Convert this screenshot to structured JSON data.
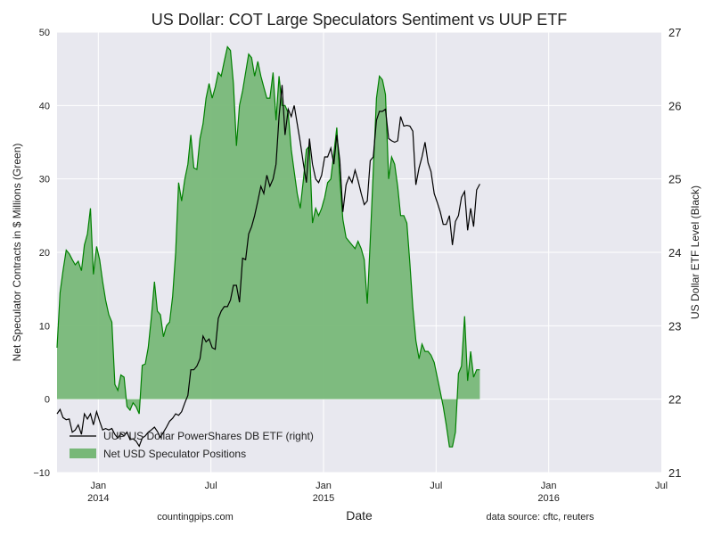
{
  "chart_data": {
    "type": "area",
    "title": "US Dollar: COT Large Speculators Sentiment vs UUP ETF",
    "xlabel": "Date",
    "ylabel_left": "Net Speculator Contracts in $ Millions (Green)",
    "ylabel_right": "US Dollar ETF Level (Black)",
    "ylim_left": [
      -10,
      50
    ],
    "ylim_right": [
      21,
      27
    ],
    "yticks_left": [
      "−10",
      "0",
      "10",
      "20",
      "30",
      "40",
      "50"
    ],
    "yticks_right": [
      "21",
      "22",
      "23",
      "24",
      "25",
      "26",
      "27"
    ],
    "x_ticks": [
      {
        "label": "Jan",
        "sub": "2014",
        "t": 3.0
      },
      {
        "label": "Jul",
        "sub": "",
        "t": 9.0
      },
      {
        "label": "Jan",
        "sub": "2015",
        "t": 15.0
      },
      {
        "label": "Jul",
        "sub": "",
        "t": 21.0
      },
      {
        "label": "Jan",
        "sub": "2016",
        "t": 27.0
      },
      {
        "label": "Jul",
        "sub": "",
        "t": 33.0
      }
    ],
    "x_range_months": [
      0.8,
      33.0
    ],
    "grid": true,
    "legend_position": "lower-left",
    "series": [
      {
        "name": "Net USD Speculator Positions",
        "axis": "left",
        "color": "#008000",
        "fill": "#78b878",
        "points": [
          [
            0.8,
            7.0
          ],
          [
            0.96,
            14.5
          ],
          [
            1.12,
            17.5
          ],
          [
            1.29,
            20.3
          ],
          [
            1.45,
            19.8
          ],
          [
            1.61,
            19.0
          ],
          [
            1.77,
            18.3
          ],
          [
            1.93,
            18.8
          ],
          [
            2.1,
            17.5
          ],
          [
            2.26,
            21.0
          ],
          [
            2.42,
            22.5
          ],
          [
            2.58,
            26.0
          ],
          [
            2.74,
            17.0
          ],
          [
            2.91,
            20.8
          ],
          [
            3.07,
            19.0
          ],
          [
            3.23,
            16.0
          ],
          [
            3.39,
            13.5
          ],
          [
            3.56,
            11.5
          ],
          [
            3.72,
            10.5
          ],
          [
            3.88,
            2.0
          ],
          [
            4.04,
            1.2
          ],
          [
            4.2,
            3.3
          ],
          [
            4.37,
            3.0
          ],
          [
            4.53,
            -1.0
          ],
          [
            4.69,
            -1.5
          ],
          [
            4.85,
            -0.5
          ],
          [
            5.01,
            -1.0
          ],
          [
            5.18,
            -2.0
          ],
          [
            5.34,
            4.6
          ],
          [
            5.5,
            4.8
          ],
          [
            5.66,
            7.0
          ],
          [
            5.82,
            11.0
          ],
          [
            5.99,
            16.0
          ],
          [
            6.15,
            12.0
          ],
          [
            6.31,
            11.5
          ],
          [
            6.47,
            8.5
          ],
          [
            6.63,
            10.0
          ],
          [
            6.8,
            10.5
          ],
          [
            6.96,
            14.0
          ],
          [
            7.12,
            20.0
          ],
          [
            7.28,
            29.5
          ],
          [
            7.44,
            27.0
          ],
          [
            7.61,
            30.0
          ],
          [
            7.77,
            32.0
          ],
          [
            7.93,
            36.0
          ],
          [
            8.09,
            31.5
          ],
          [
            8.25,
            31.3
          ],
          [
            8.42,
            35.5
          ],
          [
            8.58,
            37.5
          ],
          [
            8.74,
            41.0
          ],
          [
            8.9,
            43.0
          ],
          [
            9.07,
            41.0
          ],
          [
            9.23,
            42.5
          ],
          [
            9.39,
            44.5
          ],
          [
            9.55,
            44.0
          ],
          [
            9.71,
            46.0
          ],
          [
            9.88,
            48.0
          ],
          [
            10.04,
            47.5
          ],
          [
            10.2,
            43.0
          ],
          [
            10.36,
            34.5
          ],
          [
            10.52,
            40.0
          ],
          [
            10.69,
            42.0
          ],
          [
            10.85,
            44.5
          ],
          [
            11.01,
            47.0
          ],
          [
            11.17,
            46.5
          ],
          [
            11.33,
            44.0
          ],
          [
            11.5,
            46.0
          ],
          [
            11.66,
            44.0
          ],
          [
            11.82,
            42.5
          ],
          [
            11.98,
            41.0
          ],
          [
            12.14,
            41.0
          ],
          [
            12.31,
            44.5
          ],
          [
            12.47,
            38.0
          ],
          [
            12.63,
            44.0
          ],
          [
            12.79,
            40.0
          ],
          [
            12.95,
            40.0
          ],
          [
            13.12,
            39.0
          ],
          [
            13.28,
            34.0
          ],
          [
            13.44,
            31.0
          ],
          [
            13.6,
            28.0
          ],
          [
            13.76,
            26.0
          ],
          [
            13.93,
            30.0
          ],
          [
            14.09,
            34.0
          ],
          [
            14.25,
            34.5
          ],
          [
            14.41,
            24.0
          ],
          [
            14.58,
            26.0
          ],
          [
            14.74,
            25.0
          ],
          [
            14.9,
            26.0
          ],
          [
            15.06,
            27.5
          ],
          [
            15.22,
            29.5
          ],
          [
            15.39,
            30.0
          ],
          [
            15.55,
            33.5
          ],
          [
            15.71,
            37.0
          ],
          [
            15.87,
            30.0
          ],
          [
            16.03,
            24.5
          ],
          [
            16.2,
            22.0
          ],
          [
            16.36,
            21.5
          ],
          [
            16.52,
            21.0
          ],
          [
            16.68,
            20.5
          ],
          [
            16.84,
            21.5
          ],
          [
            17.01,
            20.5
          ],
          [
            17.17,
            19.0
          ],
          [
            17.33,
            13.0
          ],
          [
            17.49,
            21.5
          ],
          [
            17.65,
            31.0
          ],
          [
            17.82,
            41.0
          ],
          [
            17.98,
            44.0
          ],
          [
            18.14,
            43.5
          ],
          [
            18.3,
            41.5
          ],
          [
            18.47,
            30.0
          ],
          [
            18.63,
            33.0
          ],
          [
            18.79,
            32.0
          ],
          [
            18.95,
            29.0
          ],
          [
            19.11,
            25.0
          ],
          [
            19.28,
            25.0
          ],
          [
            19.44,
            24.0
          ],
          [
            19.6,
            18.5
          ],
          [
            19.76,
            12.5
          ],
          [
            19.92,
            8.0
          ],
          [
            20.09,
            5.5
          ],
          [
            20.25,
            7.5
          ],
          [
            20.41,
            6.5
          ],
          [
            20.57,
            6.5
          ],
          [
            20.73,
            6.0
          ],
          [
            20.9,
            5.0
          ],
          [
            21.06,
            3.0
          ],
          [
            21.22,
            1.0
          ],
          [
            21.38,
            -1.0
          ],
          [
            21.54,
            -3.5
          ],
          [
            21.71,
            -6.5
          ],
          [
            21.87,
            -6.5
          ],
          [
            22.03,
            -4.5
          ],
          [
            22.19,
            3.5
          ],
          [
            22.35,
            4.5
          ],
          [
            22.52,
            11.3
          ],
          [
            22.68,
            2.5
          ],
          [
            22.84,
            6.5
          ],
          [
            23.0,
            3.0
          ],
          [
            23.16,
            4.0
          ],
          [
            23.33,
            4.0
          ]
        ]
      },
      {
        "name": "UUP US Dollar PowerShares DB ETF (right)",
        "axis": "right",
        "color": "#000000",
        "points": [
          [
            0.8,
            21.8
          ],
          [
            0.96,
            21.86
          ],
          [
            1.12,
            21.75
          ],
          [
            1.29,
            21.72
          ],
          [
            1.45,
            21.73
          ],
          [
            1.61,
            21.55
          ],
          [
            1.77,
            21.58
          ],
          [
            1.93,
            21.65
          ],
          [
            2.1,
            21.52
          ],
          [
            2.26,
            21.8
          ],
          [
            2.42,
            21.73
          ],
          [
            2.58,
            21.8
          ],
          [
            2.74,
            21.65
          ],
          [
            2.91,
            21.83
          ],
          [
            3.07,
            21.7
          ],
          [
            3.23,
            21.58
          ],
          [
            3.39,
            21.6
          ],
          [
            3.56,
            21.58
          ],
          [
            3.72,
            21.6
          ],
          [
            3.88,
            21.52
          ],
          [
            4.04,
            21.47
          ],
          [
            4.2,
            21.53
          ],
          [
            4.37,
            21.5
          ],
          [
            4.53,
            21.55
          ],
          [
            4.69,
            21.45
          ],
          [
            4.85,
            21.46
          ],
          [
            5.01,
            21.43
          ],
          [
            5.18,
            21.36
          ],
          [
            5.34,
            21.47
          ],
          [
            5.5,
            21.5
          ],
          [
            5.66,
            21.55
          ],
          [
            5.82,
            21.58
          ],
          [
            5.99,
            21.62
          ],
          [
            6.15,
            21.56
          ],
          [
            6.31,
            21.48
          ],
          [
            6.47,
            21.55
          ],
          [
            6.63,
            21.62
          ],
          [
            6.8,
            21.7
          ],
          [
            6.96,
            21.74
          ],
          [
            7.12,
            21.8
          ],
          [
            7.28,
            21.78
          ],
          [
            7.44,
            21.83
          ],
          [
            7.61,
            21.95
          ],
          [
            7.77,
            22.05
          ],
          [
            7.93,
            22.4
          ],
          [
            8.09,
            22.4
          ],
          [
            8.25,
            22.45
          ],
          [
            8.42,
            22.55
          ],
          [
            8.58,
            22.86
          ],
          [
            8.74,
            22.78
          ],
          [
            8.9,
            22.82
          ],
          [
            9.07,
            22.7
          ],
          [
            9.23,
            22.68
          ],
          [
            9.39,
            23.1
          ],
          [
            9.55,
            23.2
          ],
          [
            9.71,
            23.26
          ],
          [
            9.88,
            23.26
          ],
          [
            10.04,
            23.35
          ],
          [
            10.2,
            23.55
          ],
          [
            10.36,
            23.55
          ],
          [
            10.52,
            23.32
          ],
          [
            10.69,
            23.92
          ],
          [
            10.85,
            23.9
          ],
          [
            11.01,
            24.25
          ],
          [
            11.17,
            24.35
          ],
          [
            11.33,
            24.5
          ],
          [
            11.5,
            24.7
          ],
          [
            11.66,
            24.9
          ],
          [
            11.82,
            24.8
          ],
          [
            11.98,
            25.05
          ],
          [
            12.14,
            24.9
          ],
          [
            12.31,
            25.0
          ],
          [
            12.47,
            25.2
          ],
          [
            12.63,
            25.85
          ],
          [
            12.79,
            26.28
          ],
          [
            12.95,
            25.6
          ],
          [
            13.12,
            25.95
          ],
          [
            13.28,
            25.85
          ],
          [
            13.44,
            26.0
          ],
          [
            13.6,
            25.75
          ],
          [
            13.76,
            25.5
          ],
          [
            13.93,
            25.2
          ],
          [
            14.09,
            24.95
          ],
          [
            14.25,
            25.55
          ],
          [
            14.41,
            25.2
          ],
          [
            14.58,
            25.0
          ],
          [
            14.74,
            24.95
          ],
          [
            14.9,
            25.05
          ],
          [
            15.06,
            25.3
          ],
          [
            15.22,
            25.3
          ],
          [
            15.39,
            25.42
          ],
          [
            15.55,
            25.2
          ],
          [
            15.71,
            25.6
          ],
          [
            15.87,
            25.25
          ],
          [
            16.03,
            24.55
          ],
          [
            16.2,
            24.92
          ],
          [
            16.36,
            25.03
          ],
          [
            16.52,
            24.95
          ],
          [
            16.68,
            25.12
          ],
          [
            16.84,
            24.98
          ],
          [
            17.01,
            24.8
          ],
          [
            17.17,
            24.65
          ],
          [
            17.33,
            24.7
          ],
          [
            17.49,
            25.25
          ],
          [
            17.65,
            25.3
          ],
          [
            17.82,
            25.8
          ],
          [
            17.98,
            25.92
          ],
          [
            18.14,
            25.92
          ],
          [
            18.3,
            25.95
          ],
          [
            18.47,
            25.55
          ],
          [
            18.63,
            25.52
          ],
          [
            18.79,
            25.5
          ],
          [
            18.95,
            25.52
          ],
          [
            19.11,
            25.85
          ],
          [
            19.28,
            25.72
          ],
          [
            19.44,
            25.73
          ],
          [
            19.6,
            25.72
          ],
          [
            19.76,
            25.65
          ],
          [
            19.92,
            24.92
          ],
          [
            20.09,
            25.15
          ],
          [
            20.25,
            25.3
          ],
          [
            20.41,
            25.5
          ],
          [
            20.57,
            25.22
          ],
          [
            20.73,
            25.1
          ],
          [
            20.9,
            24.8
          ],
          [
            21.06,
            24.68
          ],
          [
            21.22,
            24.55
          ],
          [
            21.38,
            24.38
          ],
          [
            21.54,
            24.38
          ],
          [
            21.71,
            24.5
          ],
          [
            21.87,
            24.1
          ],
          [
            22.03,
            24.42
          ],
          [
            22.19,
            24.5
          ],
          [
            22.35,
            24.75
          ],
          [
            22.52,
            24.83
          ],
          [
            22.68,
            24.3
          ],
          [
            22.84,
            24.6
          ],
          [
            23.0,
            24.35
          ],
          [
            23.16,
            24.85
          ],
          [
            23.33,
            24.93
          ]
        ]
      }
    ],
    "legend": [
      {
        "label": "UUP US Dollar PowerShares DB ETF (right)",
        "kind": "line",
        "color": "#000000"
      },
      {
        "label": "Net USD Speculator Positions",
        "kind": "patch",
        "color": "#78b878"
      }
    ]
  },
  "footer": {
    "left_note": "countingpips.com",
    "right_note": "data source: cftc, reuters"
  },
  "colors": {
    "plot_background": "#e8e8ef",
    "grid": "#ffffff",
    "area_fill": "#78b878",
    "area_edge": "#008000",
    "etf_line": "#000000"
  }
}
